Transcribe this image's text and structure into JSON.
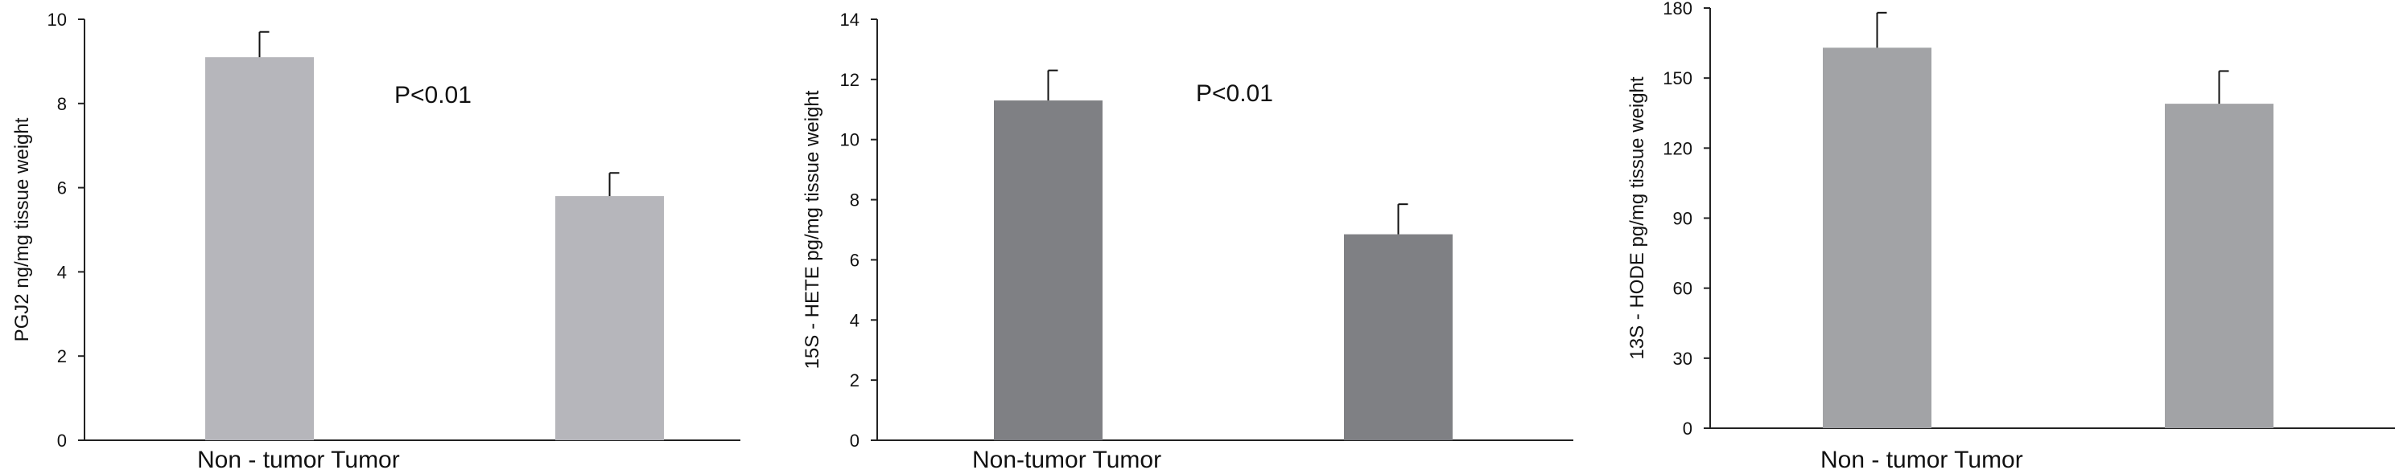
{
  "chart_data": [
    {
      "type": "bar",
      "categories": [
        "Non-tumor",
        "Tumor"
      ],
      "values": [
        9.1,
        5.8
      ],
      "errors": [
        0.6,
        0.55
      ],
      "xlabel": "Non - tumor Tumor",
      "ylabel": "PGJ2 ng/mg tissue weight",
      "ylim": [
        0,
        10
      ],
      "yticks": [
        0,
        2,
        4,
        6,
        8,
        10
      ],
      "annotation": "P<0.01",
      "bar_color": "#b6b6bb",
      "grid": false
    },
    {
      "type": "bar",
      "categories": [
        "Non-tumor",
        "Tumor"
      ],
      "values": [
        11.3,
        6.85
      ],
      "errors": [
        1.0,
        1.0
      ],
      "xlabel": "Non-tumor Tumor",
      "ylabel": "15S - HETE pg/mg tissue weight",
      "ylim": [
        0,
        14
      ],
      "yticks": [
        0,
        2,
        4,
        6,
        8,
        10,
        12,
        14
      ],
      "annotation": "P<0.01",
      "bar_color": "#7f8084",
      "grid": false
    },
    {
      "type": "bar",
      "categories": [
        "Non-tumor",
        "Tumor"
      ],
      "values": [
        163,
        139
      ],
      "errors": [
        15,
        14
      ],
      "xlabel": "Non - tumor Tumor",
      "ylabel": "13S - HODE pg/mg tissue weight",
      "ylim": [
        0,
        180
      ],
      "yticks": [
        0,
        30,
        60,
        90,
        120,
        150,
        180
      ],
      "annotation": "",
      "bar_color": "#a2a3a6",
      "grid": false
    }
  ]
}
